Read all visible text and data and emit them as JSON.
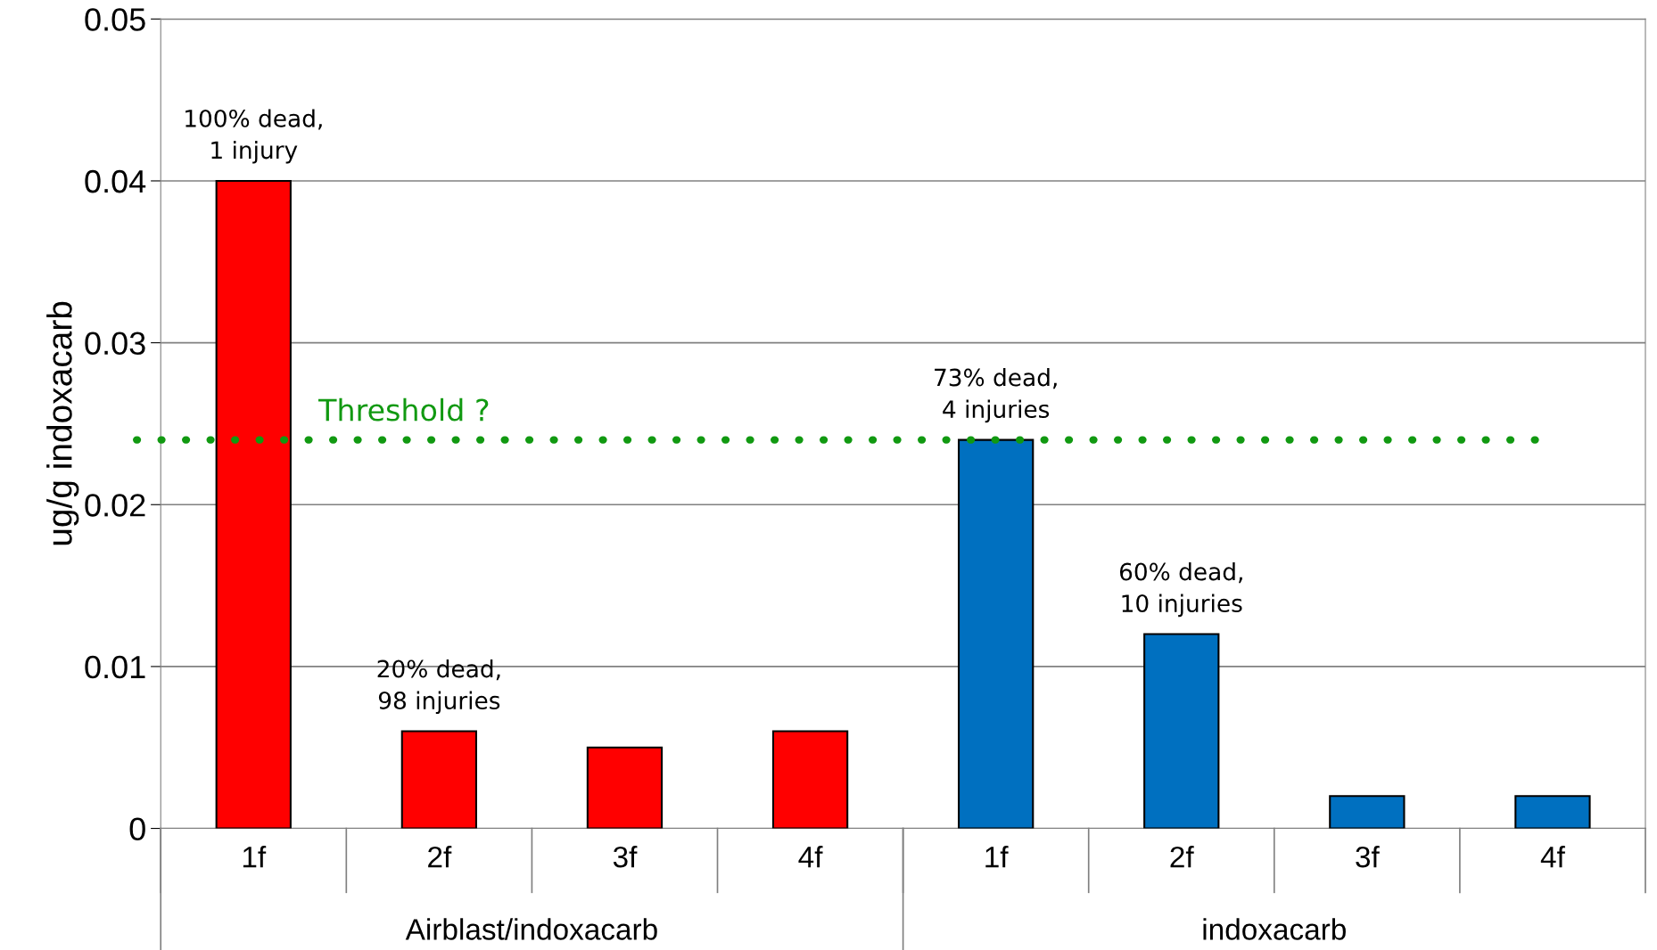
{
  "chart_data": {
    "type": "bar",
    "ylabel": "ug/g indoxacarb",
    "categories": [
      "1f",
      "2f",
      "3f",
      "4f",
      "1f",
      "2f",
      "3f",
      "4f"
    ],
    "values": [
      0.04,
      0.006,
      0.005,
      0.006,
      0.024,
      0.012,
      0.002,
      0.002
    ],
    "colors": [
      "#ff0000",
      "#ff0000",
      "#ff0000",
      "#ff0000",
      "#0070c0",
      "#0070c0",
      "#0070c0",
      "#0070c0"
    ],
    "ylim": [
      0,
      0.05
    ],
    "yticks": [
      0,
      0.01,
      0.02,
      0.03,
      0.04,
      0.05
    ],
    "grid": "y",
    "ref_lines": [
      {
        "axis": "y",
        "value": 0.024,
        "label": "Threshold ?",
        "color": "#119911",
        "line_style": "dotted"
      }
    ],
    "annotations": [
      {
        "text": "100% dead,\n1 injury",
        "x": "1f",
        "y": 0.04
      },
      {
        "text": "20% dead,\n98 injuries",
        "x": "2f",
        "y": 0.006
      },
      {
        "text": "73% dead,\n4 injuries",
        "y": 0.024
      },
      {
        "text": "60% dead,\n10 injuries",
        "y": 0.012
      },
      "Airblast/indoxacarb",
      "indoxacarb"
    ]
  }
}
